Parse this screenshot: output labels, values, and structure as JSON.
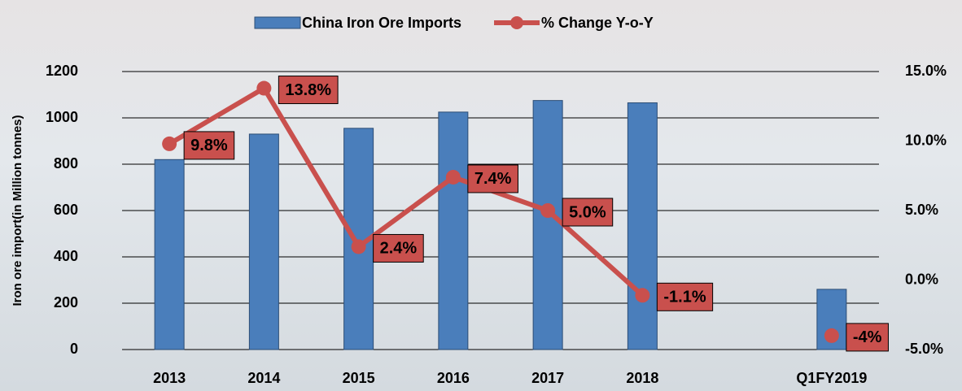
{
  "chart_data": {
    "type": "bar_line",
    "y_label": "Iron ore import(in Million tonnes)",
    "categories": [
      "2013",
      "2014",
      "2015",
      "2016",
      "2017",
      "2018",
      null,
      "Q1FY2019"
    ],
    "series": [
      {
        "name": "China Iron Ore Imports",
        "type": "bar",
        "color": "#4a7ebb",
        "values": [
          820,
          930,
          955,
          1025,
          1075,
          1065,
          null,
          260
        ]
      },
      {
        "name": "% Change Y-o-Y",
        "type": "line",
        "axis": "y2",
        "color": "#c9504d",
        "values": [
          9.8,
          13.8,
          2.4,
          7.4,
          5.0,
          -1.1,
          null,
          -4
        ],
        "value_labels": [
          "9.8%",
          "13.8%",
          "2.4%",
          "7.4%",
          "5.0%",
          "-1.1%",
          null,
          "-4%"
        ]
      }
    ],
    "ylim": [
      0,
      1200
    ],
    "yticks": [
      0,
      200,
      400,
      600,
      800,
      1000,
      1200
    ],
    "y2lim": [
      -5,
      15
    ],
    "y2ticks": [
      {
        "value": -5,
        "label": "-5.0%"
      },
      {
        "value": 0,
        "label": "0.0%"
      },
      {
        "value": 5,
        "label": "5.0%"
      },
      {
        "value": 10,
        "label": "10.0%"
      },
      {
        "value": 15,
        "label": "15.0%"
      }
    ],
    "grid": true,
    "legend": "top"
  }
}
